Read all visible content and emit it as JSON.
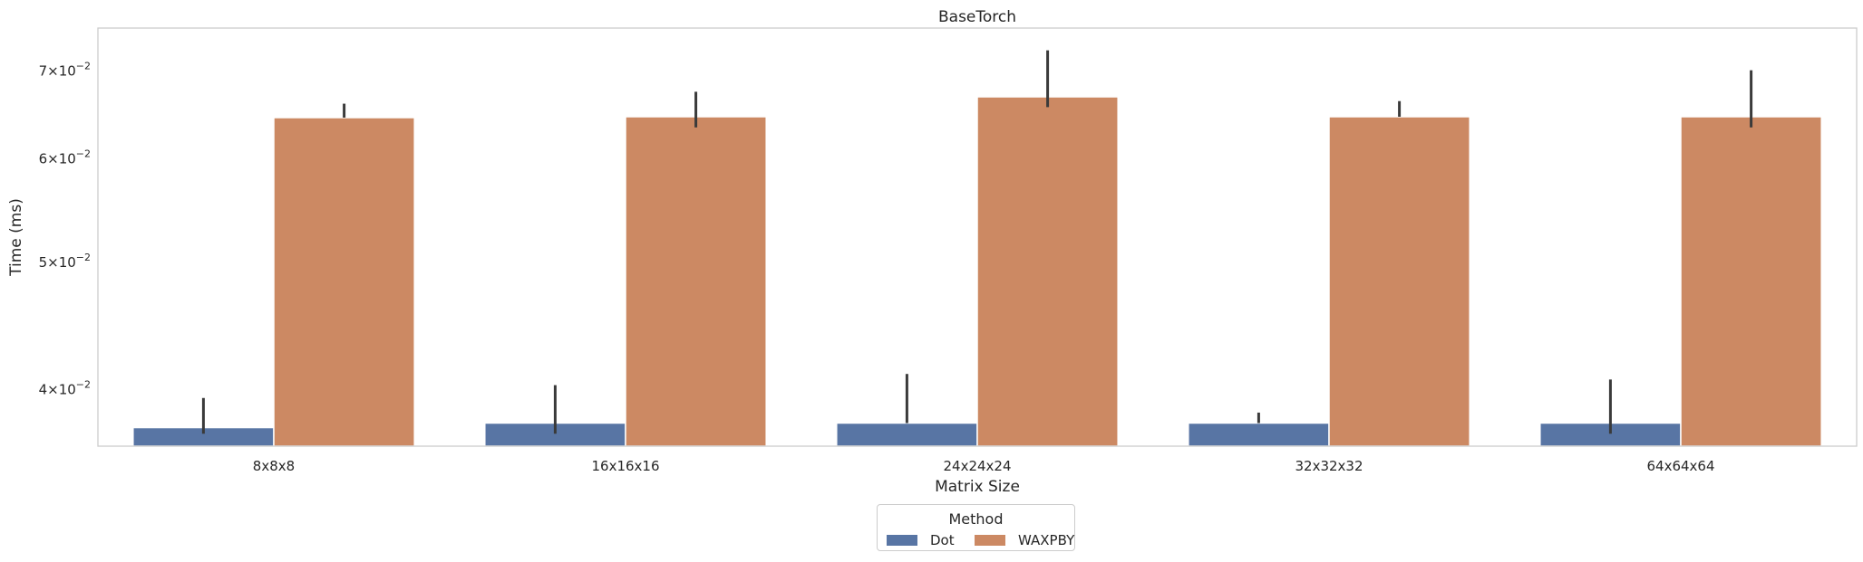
{
  "chart_data": {
    "type": "bar",
    "title": "BaseTorch",
    "xlabel": "Matrix Size",
    "ylabel": "Time (ms)",
    "yscale": "log",
    "categories": [
      "8x8x8",
      "16x16x16",
      "24x24x24",
      "32x32x32",
      "64x64x64"
    ],
    "y_ticks": [
      {
        "value": 0.04,
        "mantissa": "4",
        "base": "10",
        "exponent": "−2"
      },
      {
        "value": 0.05,
        "mantissa": "5",
        "base": "10",
        "exponent": "−2"
      },
      {
        "value": 0.06,
        "mantissa": "6",
        "base": "10",
        "exponent": "−2"
      },
      {
        "value": 0.07,
        "mantissa": "7",
        "base": "10",
        "exponent": "−2"
      }
    ],
    "ylim": [
      0.0362,
      0.0755
    ],
    "grid": false,
    "series": [
      {
        "name": "Dot",
        "color": "#5875a4",
        "values": [
          0.0374,
          0.0377,
          0.0377,
          0.0377,
          0.0377
        ],
        "error_low": [
          0.037,
          0.037,
          0.0377,
          0.0377,
          0.037
        ],
        "error_high": [
          0.0394,
          0.0403,
          0.0411,
          0.0384,
          0.0407
        ]
      },
      {
        "name": "WAXPBY",
        "color": "#cc8963",
        "values": [
          0.0645,
          0.0646,
          0.0669,
          0.0646,
          0.0646
        ],
        "error_low": [
          0.0645,
          0.0634,
          0.0657,
          0.0646,
          0.0634
        ],
        "error_high": [
          0.0661,
          0.0675,
          0.0726,
          0.0664,
          0.0701
        ]
      }
    ],
    "legend": {
      "title": "Method",
      "placement": "bottom-center"
    }
  }
}
